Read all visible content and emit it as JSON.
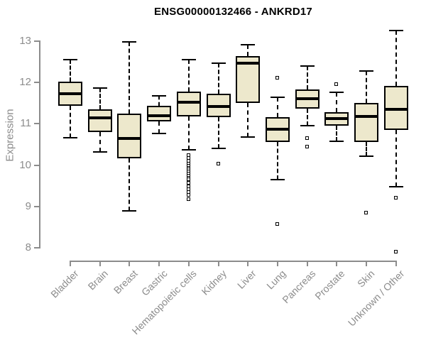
{
  "chart_data": {
    "type": "boxplot",
    "title": "ENSG00000132466 - ANKRD17",
    "ylabel": "Expression",
    "xlabel": "",
    "ylim": [
      7.7,
      13.4
    ],
    "yticks": [
      8,
      9,
      10,
      11,
      12,
      13
    ],
    "grid": false,
    "legend": "none",
    "categories": [
      "Bladder",
      "Brain",
      "Breast",
      "Gastric",
      "Hematopoietic cells",
      "Kidney",
      "Liver",
      "Lung",
      "Pancreas",
      "Prostate",
      "Skin",
      "Unknown / Other"
    ],
    "series": [
      {
        "name": "Bladder",
        "low": 10.66,
        "q1": 11.43,
        "median": 11.72,
        "q3": 12.02,
        "high": 12.55,
        "outliers": []
      },
      {
        "name": "Brain",
        "low": 10.31,
        "q1": 10.79,
        "median": 11.14,
        "q3": 11.35,
        "high": 11.86,
        "outliers": []
      },
      {
        "name": "Breast",
        "low": 8.9,
        "q1": 10.17,
        "median": 10.64,
        "q3": 11.24,
        "high": 12.97,
        "outliers": []
      },
      {
        "name": "Gastric",
        "low": 10.76,
        "q1": 11.06,
        "median": 11.2,
        "q3": 11.43,
        "high": 11.67,
        "outliers": []
      },
      {
        "name": "Hematopoietic cells",
        "low": 10.37,
        "q1": 11.17,
        "median": 11.52,
        "q3": 11.77,
        "high": 12.55,
        "outliers": [
          10.24,
          10.17,
          10.1,
          10.03,
          9.98,
          9.93,
          9.88,
          9.83,
          9.78,
          9.73,
          9.68,
          9.64,
          9.56,
          9.48,
          9.41,
          9.34,
          9.27,
          9.17
        ]
      },
      {
        "name": "Kidney",
        "low": 10.4,
        "q1": 11.16,
        "median": 11.42,
        "q3": 11.73,
        "high": 12.46,
        "outliers": [
          10.03
        ]
      },
      {
        "name": "Liver",
        "low": 10.67,
        "q1": 11.5,
        "median": 12.46,
        "q3": 12.64,
        "high": 12.9,
        "outliers": []
      },
      {
        "name": "Lung",
        "low": 9.64,
        "q1": 10.56,
        "median": 10.87,
        "q3": 11.16,
        "high": 11.64,
        "outliers": [
          12.1,
          8.57
        ]
      },
      {
        "name": "Pancreas",
        "low": 10.96,
        "q1": 11.36,
        "median": 11.6,
        "q3": 11.83,
        "high": 12.4,
        "outliers": [
          10.65,
          10.44
        ]
      },
      {
        "name": "Prostate",
        "low": 10.57,
        "q1": 10.96,
        "median": 11.13,
        "q3": 11.27,
        "high": 11.75,
        "outliers": [
          11.95
        ]
      },
      {
        "name": "Skin",
        "low": 10.21,
        "q1": 10.56,
        "median": 11.17,
        "q3": 11.5,
        "high": 12.28,
        "outliers": [
          8.85
        ]
      },
      {
        "name": "Unknown / Other",
        "low": 9.47,
        "q1": 10.85,
        "median": 11.35,
        "q3": 11.91,
        "high": 13.25,
        "outliers": [
          9.21,
          7.9
        ]
      }
    ],
    "style": {
      "box_fill": "#EDE8CC",
      "box_border": "#000000",
      "median_color": "#000000",
      "whisker_color": "#000000",
      "axis_color": "#8c8c8c",
      "tick_text_color": "#8c8c8c",
      "title_color": "#000000",
      "background": "#ffffff"
    }
  }
}
